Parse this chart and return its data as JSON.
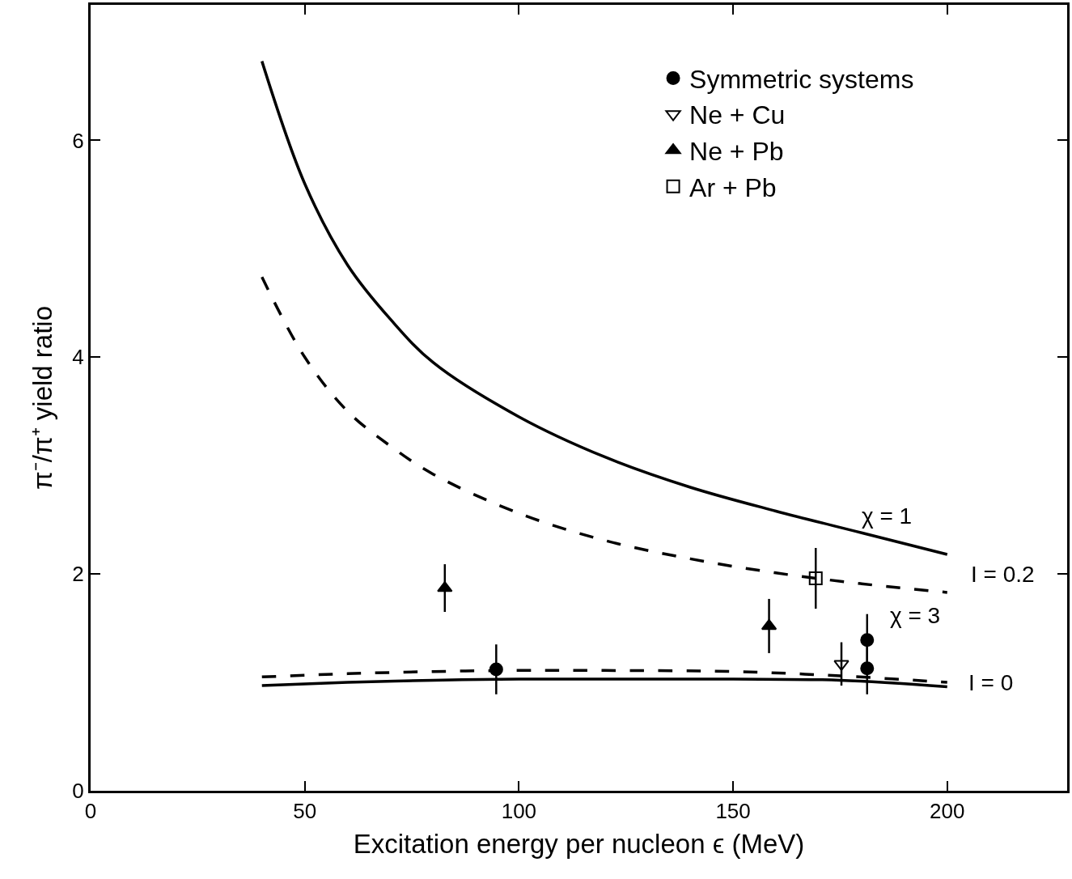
{
  "chart_data": {
    "type": "scatter",
    "xlabel": "Excitation energy per nucleon ϵ (MeV)",
    "ylabel": "π⁻/π⁺ yield ratio",
    "xlim": [
      0,
      228
    ],
    "ylim": [
      0,
      7.25
    ],
    "xticks": [
      0,
      50,
      100,
      150,
      200
    ],
    "yticks": [
      0,
      2,
      4,
      6
    ],
    "legend": "top right",
    "series": [
      {
        "type": "line",
        "color": "#000000",
        "line_style": "solid",
        "marker": "none",
        "x": [
          40,
          50,
          60,
          70,
          80,
          100,
          120,
          140,
          160,
          180,
          200
        ],
        "values": [
          6.73,
          5.6,
          4.85,
          4.35,
          3.95,
          3.45,
          3.08,
          2.8,
          2.58,
          2.38,
          2.18
        ]
      },
      {
        "type": "line",
        "color": "#000000",
        "line_style": "dashed",
        "marker": "none",
        "x": [
          40,
          50,
          60,
          70,
          80,
          100,
          120,
          140,
          160,
          180,
          200
        ],
        "values": [
          4.74,
          4.0,
          3.5,
          3.18,
          2.92,
          2.56,
          2.31,
          2.14,
          2.01,
          1.91,
          1.83
        ]
      },
      {
        "type": "line",
        "color": "#000000",
        "line_style": "dashed",
        "marker": "none",
        "x": [
          40,
          60,
          80,
          100,
          120,
          150,
          175,
          200
        ],
        "values": [
          1.05,
          1.08,
          1.1,
          1.11,
          1.11,
          1.1,
          1.06,
          1.0
        ]
      },
      {
        "type": "line",
        "color": "#000000",
        "line_style": "solid",
        "marker": "none",
        "x": [
          40,
          60,
          80,
          100,
          120,
          150,
          175,
          200
        ],
        "values": [
          0.97,
          1.0,
          1.02,
          1.03,
          1.03,
          1.03,
          1.02,
          0.96
        ]
      },
      {
        "name": "Symmetric systems",
        "color": "#000000",
        "marker": "circle",
        "x": [
          94.7,
          181.3,
          181.3
        ],
        "values": [
          1.12,
          1.39,
          1.13
        ],
        "errors": [
          0.23,
          0.24,
          0.24
        ]
      },
      {
        "name": "Ne + Cu",
        "color": "#000000",
        "marker": "triangle-down-open",
        "x": [
          175.3
        ],
        "values": [
          1.17
        ],
        "errors": [
          0.2
        ]
      },
      {
        "name": "Ne + Pb",
        "color": "#000000",
        "marker": "triangle",
        "x": [
          82.7,
          158.4
        ],
        "values": [
          1.87,
          1.52
        ],
        "errors": [
          0.22,
          0.25
        ]
      },
      {
        "name": "Ar + Pb",
        "color": "#000000",
        "marker": "square-open",
        "x": [
          169.3
        ],
        "values": [
          1.96
        ],
        "errors": [
          0.28
        ]
      }
    ],
    "annotations": [
      "χ = 1",
      "I = 0.2",
      "χ = 3",
      "I = 0"
    ]
  }
}
